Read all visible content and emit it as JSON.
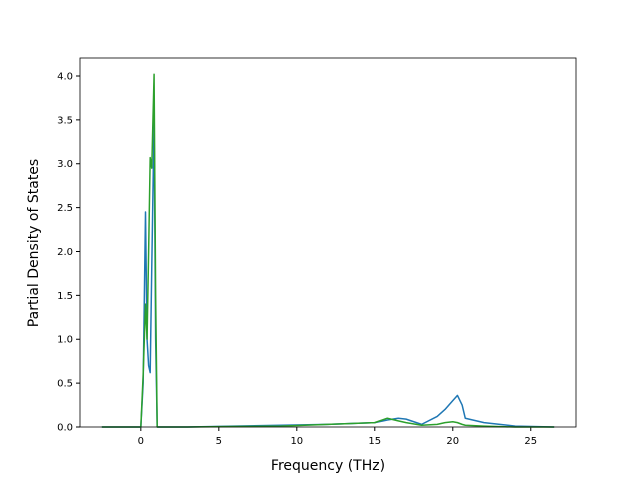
{
  "chart_data": {
    "type": "line",
    "xlabel": "Frequency (THz)",
    "ylabel": "Partial Density of States",
    "x": [
      -2.5,
      0,
      0.15,
      0.3,
      0.4,
      0.5,
      0.6,
      0.7,
      0.85,
      0.95,
      1.05,
      3,
      6,
      9,
      12,
      15,
      15.8,
      16.5,
      17,
      18,
      19,
      19.5,
      20,
      20.3,
      20.6,
      20.8,
      22,
      24,
      26.5
    ],
    "series": [
      {
        "color": "#1f77b4",
        "values": [
          0,
          0,
          0.5,
          2.45,
          1.0,
          0.7,
          0.62,
          1.8,
          3.5,
          1.0,
          0,
          0,
          0.01,
          0.02,
          0.03,
          0.05,
          0.08,
          0.1,
          0.09,
          0.03,
          0.12,
          0.2,
          0.3,
          0.36,
          0.25,
          0.1,
          0.05,
          0.01,
          0
        ]
      },
      {
        "color": "#2ca02c",
        "values": [
          0,
          0,
          0.6,
          1.4,
          1.0,
          2.0,
          3.07,
          2.95,
          4.02,
          1.5,
          0,
          0,
          0.005,
          0.01,
          0.03,
          0.05,
          0.1,
          0.07,
          0.05,
          0.02,
          0.03,
          0.05,
          0.06,
          0.05,
          0.03,
          0.02,
          0.01,
          0,
          0
        ]
      }
    ],
    "xlim": [
      -3.9,
      27.9
    ],
    "ylim": [
      0,
      4.205
    ],
    "xticks": [
      0,
      5,
      10,
      15,
      20,
      25
    ],
    "yticks": [
      {
        "value": 0,
        "label": "0.0"
      },
      0.5,
      {
        "value": 1,
        "label": "1.0"
      },
      1.5,
      {
        "value": 2,
        "label": "2.0"
      },
      2.5,
      {
        "value": 3,
        "label": "3.0"
      },
      3.5,
      {
        "value": 4,
        "label": "4.0"
      }
    ]
  }
}
